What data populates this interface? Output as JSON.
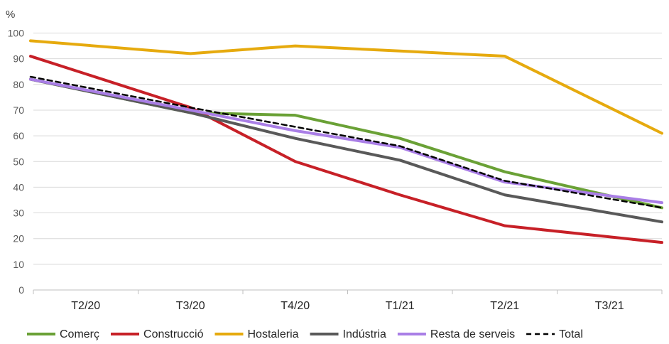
{
  "chart_data": {
    "type": "line",
    "title": "",
    "xlabel": "",
    "ylabel": "%",
    "ylim": [
      0,
      100
    ],
    "yticks": [
      0,
      10,
      20,
      30,
      40,
      50,
      60,
      70,
      80,
      90,
      100
    ],
    "grid": true,
    "legend_position": "bottom",
    "categories": [
      "T2/20",
      "T3/20",
      "T4/20",
      "T1/21",
      "T2/21",
      "T3/21"
    ],
    "series": [
      {
        "name": "Comerç",
        "color": "#6aa136",
        "dashed": false,
        "values": [
          82,
          69,
          68,
          59,
          46,
          32
        ]
      },
      {
        "name": "Construcció",
        "color": "#c72027",
        "dashed": false,
        "values": [
          91,
          71,
          50,
          37,
          25,
          18.5
        ]
      },
      {
        "name": "Hostaleria",
        "color": "#e6aa0e",
        "dashed": false,
        "values": [
          97,
          92,
          95,
          93,
          91,
          61
        ]
      },
      {
        "name": "Indústria",
        "color": "#595959",
        "dashed": false,
        "values": [
          82,
          69,
          59,
          50.5,
          37,
          26.5
        ]
      },
      {
        "name": "Resta de serveis",
        "color": "#a97ee6",
        "dashed": false,
        "values": [
          82,
          70,
          62,
          55.5,
          42,
          34
        ]
      },
      {
        "name": "Total",
        "color": "#000000",
        "dashed": true,
        "values": [
          83,
          71,
          63.5,
          56,
          42.5,
          32
        ]
      }
    ]
  }
}
